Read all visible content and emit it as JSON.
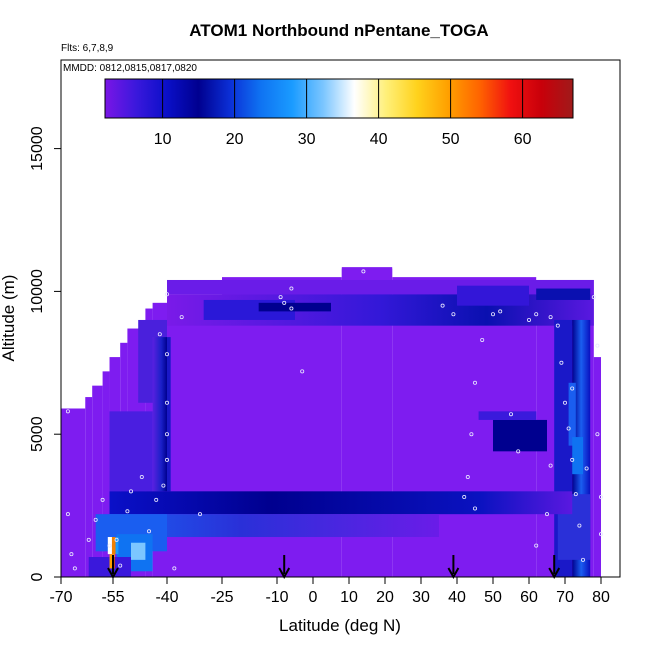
{
  "chart_data": {
    "type": "heatmap",
    "title": "ATOM1 Northbound nPentane_TOGA",
    "flights_label": "Flts: 6,7,8,9",
    "dates_label": "MMDD: 0812,0815,0817,0820",
    "xlabel": "Latitude (deg N)",
    "ylabel": "Altitude (m)",
    "xlim": [
      -70,
      85
    ],
    "ylim": [
      0,
      17500
    ],
    "x_ticks": [
      -70,
      -55,
      -40,
      -25,
      -10,
      0,
      10,
      20,
      30,
      40,
      50,
      60,
      70,
      80
    ],
    "y_ticks": [
      0,
      5000,
      10000,
      15000
    ],
    "colorbar": {
      "range": [
        2,
        67
      ],
      "ticks": [
        10,
        20,
        30,
        40,
        50,
        60
      ],
      "colors": [
        "#7a16e6",
        "#3a18dc",
        "#0a0fc8",
        "#00008f",
        "#0b2fd6",
        "#0f73f2",
        "#1a9bff",
        "#7cc6ff",
        "#ffffff",
        "#fff07a",
        "#ffd21c",
        "#ffa000",
        "#ff6400",
        "#f01010",
        "#c8000a",
        "#a01a1a"
      ]
    },
    "marker_arrows_lat": [
      -55,
      -8,
      39,
      67
    ],
    "colors": {
      "background_purple": "#7e1cf0",
      "dark_band": "#00008f",
      "mid_blue": "#1565e6"
    }
  }
}
